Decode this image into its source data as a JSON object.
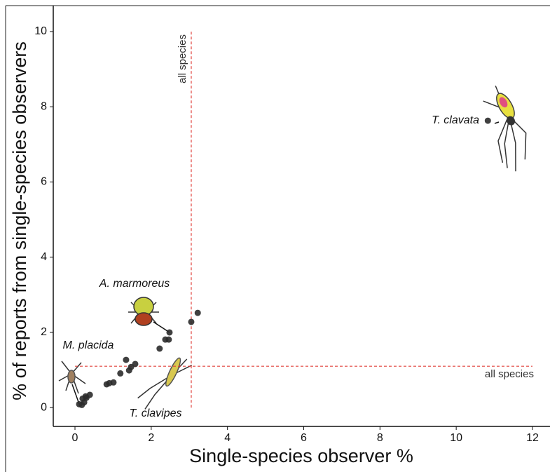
{
  "chart_data": {
    "type": "scatter",
    "x_label": "Single-species observer %",
    "y_label": "% of reports from single-species observers",
    "x": [
      10.83,
      3.22,
      3.05,
      2.48,
      2.37,
      2.46,
      2.22,
      1.34,
      1.58,
      1.47,
      1.42,
      1.19,
      1.01,
      0.9,
      0.83,
      0.39,
      0.28,
      0.2,
      0.3,
      0.24,
      0.11,
      0.18
    ],
    "values": [
      7.63,
      2.52,
      2.28,
      2.0,
      1.81,
      1.81,
      1.57,
      1.27,
      1.16,
      1.08,
      0.99,
      0.91,
      0.67,
      0.65,
      0.62,
      0.34,
      0.3,
      0.24,
      0.26,
      0.14,
      0.09,
      0.07
    ],
    "color": "#2b2b2b",
    "xlim": [
      -0.57,
      12.46
    ],
    "ylim": [
      -0.5,
      10.69
    ],
    "xticks": [
      0,
      2,
      4,
      6,
      8,
      10,
      12
    ],
    "yticks": [
      0,
      2,
      4,
      6,
      8,
      10
    ],
    "reference_lines": [
      {
        "axis": "x",
        "value": 3.05,
        "label": "all species",
        "color": "#e0403a"
      },
      {
        "axis": "y",
        "value": 1.1,
        "label": "all species",
        "color": "#e0403a"
      }
    ],
    "annotations": [
      "T. clavata",
      "A. marmoreus",
      "M. placida",
      "T. clavipes"
    ]
  }
}
